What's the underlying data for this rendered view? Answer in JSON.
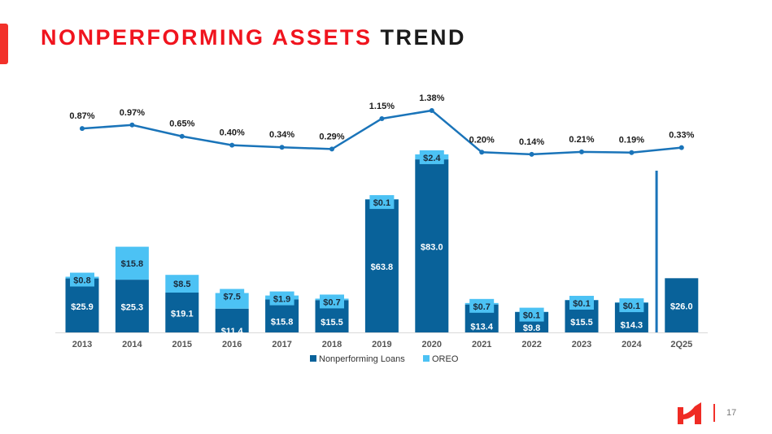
{
  "title": {
    "part1": "NONPERFORMING ASSETS",
    "part2": "TREND"
  },
  "page_number": "17",
  "colors": {
    "title_red": "#f0141e",
    "npl": "#09629a",
    "oreo": "#4cc2f4",
    "line": "#1a74b9"
  },
  "chart_data": {
    "type": "bar",
    "stacked": true,
    "categories": [
      "2013",
      "2014",
      "2015",
      "2016",
      "2017",
      "2018",
      "2019",
      "2020",
      "2021",
      "2022",
      "2023",
      "2024",
      "2Q25"
    ],
    "series": [
      {
        "name": "Nonperforming Loans",
        "values": [
          25.9,
          25.3,
          19.1,
          11.4,
          15.8,
          15.5,
          63.8,
          83.0,
          13.4,
          9.8,
          15.5,
          14.3,
          26.0
        ],
        "labels": [
          "$25.9",
          "$25.3",
          "$19.1",
          "$11.4",
          "$15.8",
          "$15.5",
          "$63.8",
          "$83.0",
          "$13.4",
          "$9.8",
          "$15.5",
          "$14.3",
          "$26.0"
        ]
      },
      {
        "name": "OREO",
        "values": [
          0.8,
          15.8,
          8.5,
          7.5,
          1.9,
          0.7,
          0.1,
          2.4,
          0.7,
          0.1,
          0.1,
          0.1,
          null
        ],
        "labels": [
          "$0.8",
          "$15.8",
          "$8.5",
          "$7.5",
          "$1.9",
          "$0.7",
          "$0.1",
          "$2.4",
          "$0.7",
          "$0.1",
          "$0.1",
          "$0.1",
          ""
        ]
      }
    ],
    "line_series": {
      "type": "line",
      "values": [
        0.87,
        0.97,
        0.65,
        0.4,
        0.34,
        0.29,
        1.15,
        1.38,
        0.2,
        0.14,
        0.21,
        0.19,
        0.33
      ],
      "labels": [
        "0.87%",
        "0.97%",
        "0.65%",
        "0.40%",
        "0.34%",
        "0.29%",
        "1.15%",
        "1.38%",
        "0.20%",
        "0.14%",
        "0.21%",
        "0.19%",
        "0.33%"
      ]
    },
    "legend": {
      "position": "bottom",
      "entries": [
        "Nonperforming Loans",
        "OREO"
      ]
    },
    "grid": false,
    "separator_before": "2Q25"
  }
}
